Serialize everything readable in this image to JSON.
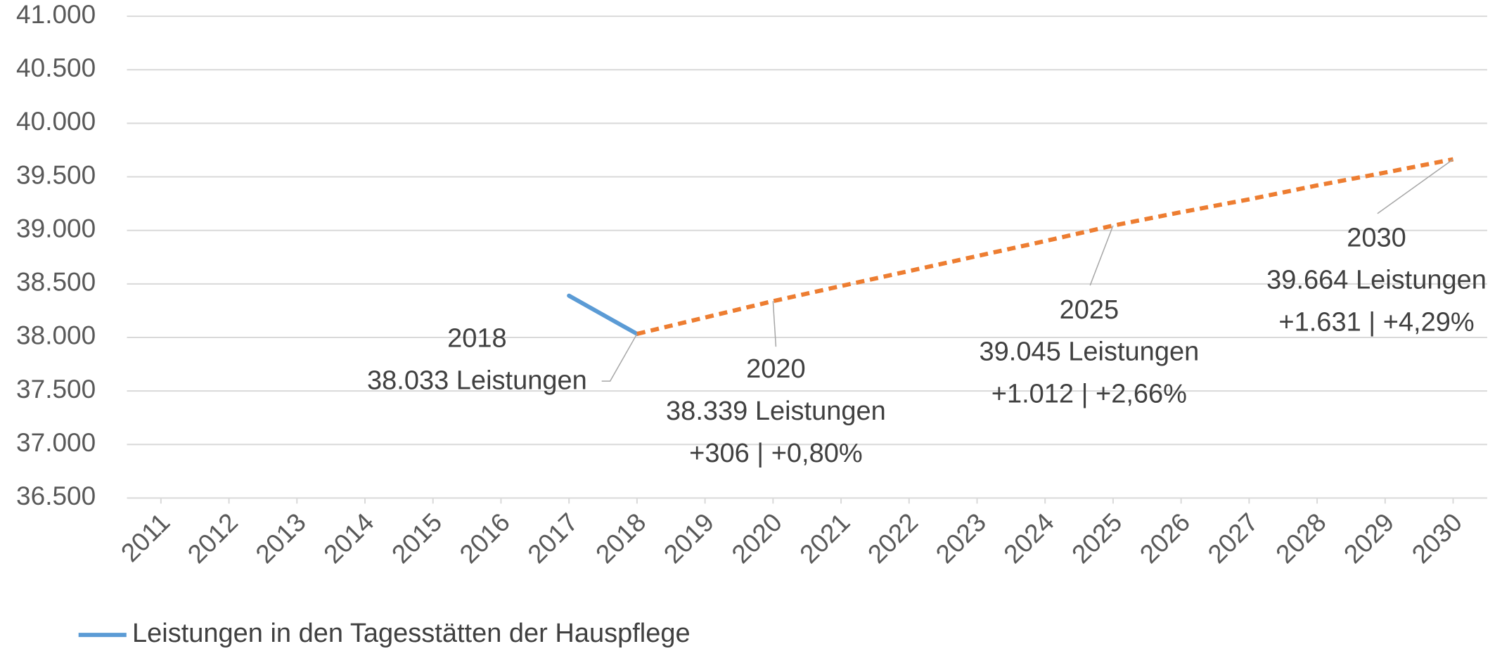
{
  "chart_data": {
    "type": "line",
    "categories": [
      "2011",
      "2012",
      "2013",
      "2014",
      "2015",
      "2016",
      "2017",
      "2018",
      "2019",
      "2020",
      "2021",
      "2022",
      "2023",
      "2024",
      "2025",
      "2026",
      "2027",
      "2028",
      "2029",
      "2030"
    ],
    "series": [
      {
        "name": "Leistungen in den Tagesstätten der Hauspflege",
        "color": "#5b9bd5",
        "dashed": false,
        "values": [
          null,
          null,
          null,
          null,
          null,
          null,
          38390,
          38033,
          null,
          null,
          null,
          null,
          null,
          null,
          null,
          null,
          null,
          null,
          null,
          null
        ]
      },
      {
        "color": "#ed7d31",
        "dashed": true,
        "values": [
          null,
          null,
          null,
          null,
          null,
          null,
          null,
          38033,
          38186,
          38339,
          38480,
          38620,
          38760,
          38900,
          39045,
          39170,
          39290,
          39420,
          39540,
          39664
        ]
      }
    ],
    "ylim": [
      36500,
      41000
    ],
    "yticks": [
      {
        "value": 36500,
        "label": "36.500"
      },
      {
        "value": 37000,
        "label": "37.000"
      },
      {
        "value": 37500,
        "label": "37.500"
      },
      {
        "value": 38000,
        "label": "38.000"
      },
      {
        "value": 38500,
        "label": "38.500"
      },
      {
        "value": 39000,
        "label": "39.000"
      },
      {
        "value": 39500,
        "label": "39.500"
      },
      {
        "value": 40000,
        "label": "40.000"
      },
      {
        "value": 40500,
        "label": "40.500"
      },
      {
        "value": 41000,
        "label": "41.000"
      }
    ],
    "grid": true,
    "legend": "bottom-left",
    "annotations": [
      {
        "x": "2018",
        "lines": [
          "2018",
          "38.033 Leistungen"
        ]
      },
      {
        "x": "2020",
        "lines": [
          "2020",
          "38.339 Leistungen",
          "+306 | +0,80%"
        ]
      },
      {
        "x": "2025",
        "lines": [
          "2025",
          "39.045 Leistungen",
          "+1.012 | +2,66%"
        ]
      },
      {
        "x": "2030",
        "lines": [
          "2030",
          "39.664 Leistungen",
          "+1.631 | +4,29%"
        ]
      }
    ]
  }
}
